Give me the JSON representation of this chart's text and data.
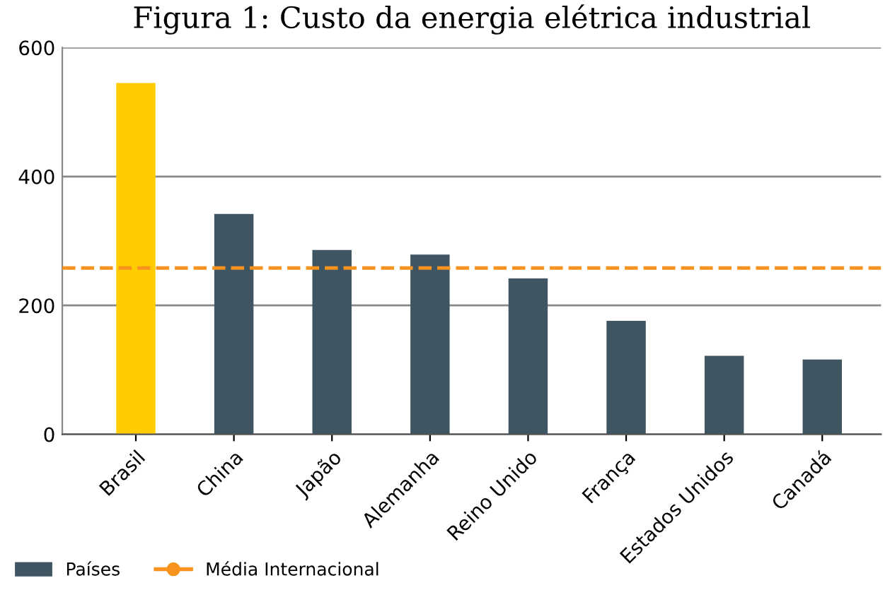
{
  "chart_data": {
    "type": "bar",
    "title": "Figura 1: Custo da energia elétrica industrial",
    "categories": [
      "Brasil",
      "China",
      "Japão",
      "Alemanha",
      "Reino Unido",
      "França",
      "Estados Unidos",
      "Canadá"
    ],
    "series": [
      {
        "name": "Países",
        "color": "#3f5561",
        "colors": [
          "#ffcc00",
          "#3f5561",
          "#3f5561",
          "#3f5561",
          "#3f5561",
          "#3f5561",
          "#3f5561",
          "#3f5561"
        ],
        "values": [
          545,
          342,
          286,
          279,
          242,
          176,
          122,
          116
        ]
      }
    ],
    "ref_lines": [
      {
        "axis": "y",
        "value": 258,
        "label": "Média Internacional",
        "color": "#f7931e",
        "line_style": "dashed"
      }
    ],
    "ylim": [
      0,
      600
    ],
    "yticks": [
      0,
      200,
      400,
      600
    ],
    "grid": "y",
    "legend": "bottom left"
  }
}
